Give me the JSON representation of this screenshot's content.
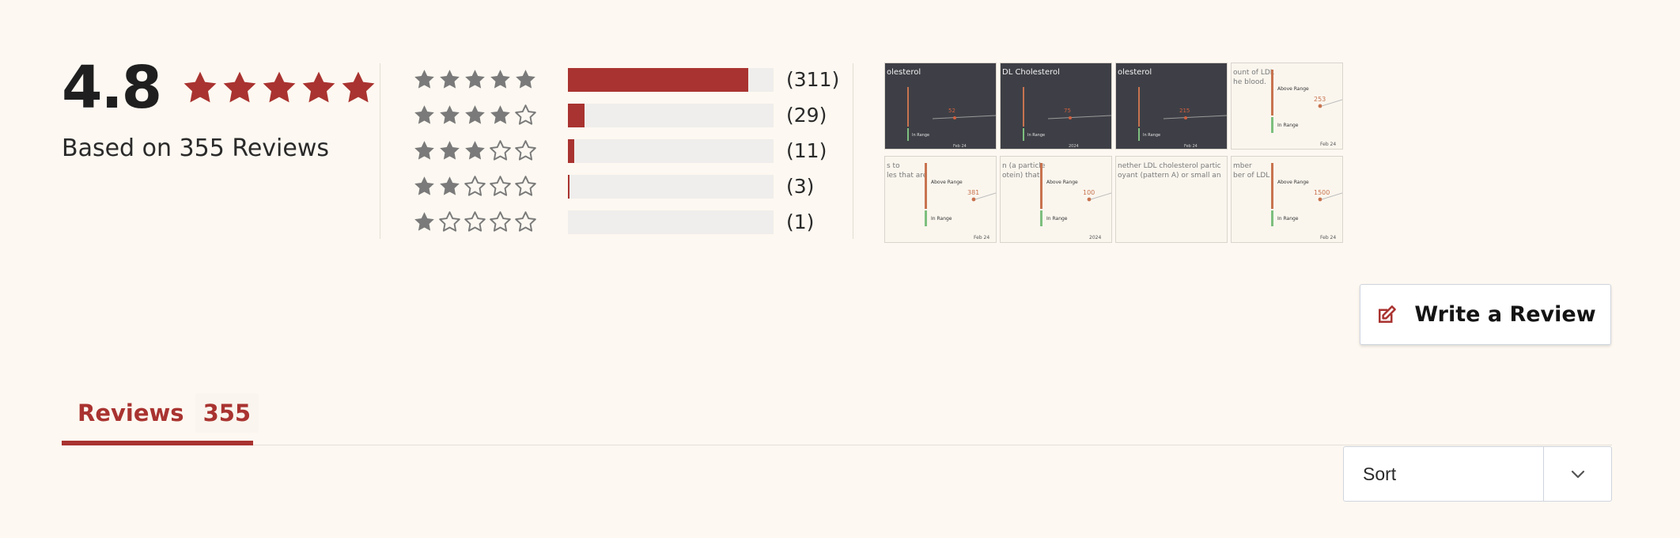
{
  "summary": {
    "average": "4.8",
    "based_on": "Based on 355 Reviews",
    "star_icons": [
      "star-filled-icon",
      "star-filled-icon",
      "star-filled-icon",
      "star-filled-icon",
      "star-filled-icon"
    ]
  },
  "histogram": {
    "rows": [
      {
        "stars": 5,
        "count": "(311)",
        "fraction": 0.876
      },
      {
        "stars": 4,
        "count": "(29)",
        "fraction": 0.082
      },
      {
        "stars": 3,
        "count": "(11)",
        "fraction": 0.031
      },
      {
        "stars": 2,
        "count": "(3)",
        "fraction": 0.008
      },
      {
        "stars": 1,
        "count": "(1)",
        "fraction": 0.0
      }
    ]
  },
  "media": {
    "thumbs": [
      {
        "theme": "dark",
        "title": "olesterol",
        "value": "52",
        "range": "In Range",
        "date": "Feb 24"
      },
      {
        "theme": "dark",
        "title": "DL Cholesterol",
        "value": "75",
        "range": "In Range",
        "date": "2024"
      },
      {
        "theme": "dark",
        "title": "olesterol",
        "value": "215",
        "range": "In Range",
        "date": "Feb 24"
      },
      {
        "theme": "light",
        "title": "ount of LDL",
        "subtitle": "he blood.",
        "above": "Above Range",
        "value": "253",
        "range": "In Range",
        "date": "Feb 24"
      },
      {
        "theme": "light",
        "title": "s to",
        "subtitle": "les that are",
        "above": "Above Range",
        "value": "381",
        "range": "In Range",
        "date": "Feb 24"
      },
      {
        "theme": "light",
        "title": "n (a particle",
        "subtitle": "otein) that",
        "above": "Above Range",
        "value": "100",
        "range": "In Range",
        "date": "2024"
      },
      {
        "theme": "light",
        "title": "nether LDL cholesterol partic",
        "subtitle": "oyant (pattern A) or small an",
        "above": "",
        "value": "",
        "range": "",
        "date": ""
      },
      {
        "theme": "light",
        "title": "mber",
        "subtitle": "ber of LDL",
        "above": "Above Range",
        "value": "1500",
        "range": "In Range",
        "date": "Feb 24"
      }
    ]
  },
  "actions": {
    "write_review": "Write a Review",
    "write_icon": "edit-icon"
  },
  "tabs": {
    "reviews_label": "Reviews",
    "reviews_count": "355"
  },
  "sort": {
    "value": "Sort",
    "icon": "chevron-down-icon"
  },
  "colors": {
    "accent": "#a93330",
    "star_gray": "#7a7a7a",
    "background": "#fdf8f1"
  }
}
